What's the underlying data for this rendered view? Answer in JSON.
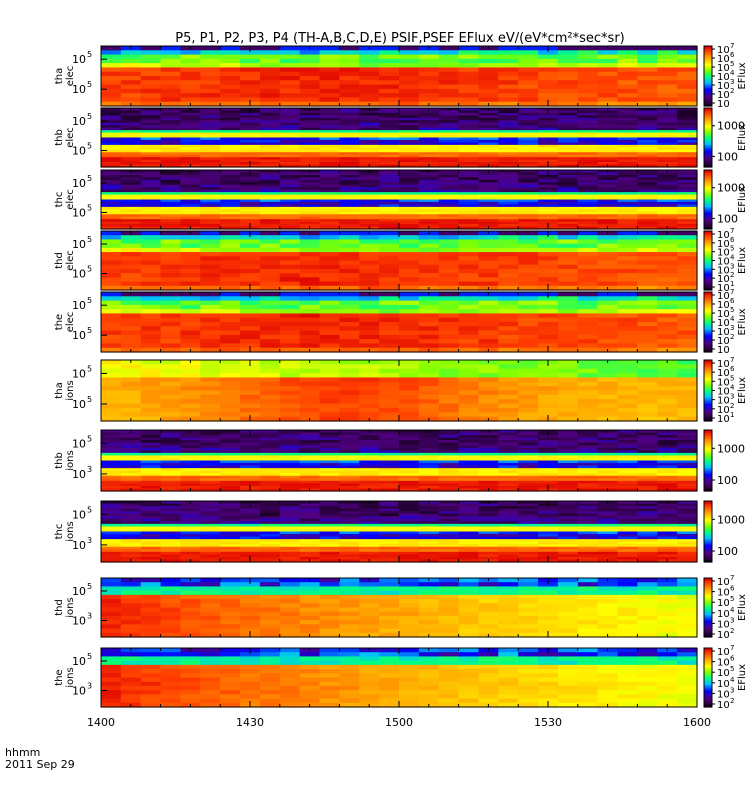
{
  "chart_data": {
    "type": "heatmap",
    "title": "P5, P1, P2, P3, P4 (TH-A,B,C,D,E) PSIF,PSEF EFlux eV/(eV*cm²*sec*sr)",
    "x_ticks": [
      "1400",
      "1430",
      "1500",
      "1530",
      "1600"
    ],
    "x_range": [
      1400,
      1600
    ],
    "time_label_1": "hhmm",
    "time_label_2": "2011 Sep 29",
    "panels": [
      {
        "probe": "tha",
        "species": "elec",
        "y_ticks": [
          "10",
          "10"
        ],
        "y_exps": [
          "5",
          "5"
        ],
        "colorbar_label": "EFlux",
        "colorbar_ticks": [
          "10",
          "10",
          "10",
          "10",
          "10",
          "10",
          "10"
        ],
        "colorbar_exps": [
          "7",
          "6",
          "5",
          "4",
          "3",
          "2",
          ""
        ],
        "pattern": "elec_high"
      },
      {
        "probe": "thb",
        "species": "elec",
        "y_ticks": [
          "10",
          "10"
        ],
        "y_exps": [
          "5",
          "5"
        ],
        "colorbar_label": "EFlux",
        "colorbar_ticks": [
          "1000",
          "100"
        ],
        "colorbar_exps": [
          "",
          ""
        ],
        "pattern": "bands"
      },
      {
        "probe": "thc",
        "species": "elec",
        "y_ticks": [
          "10",
          "10"
        ],
        "y_exps": [
          "5",
          "5"
        ],
        "colorbar_label": "EFlux",
        "colorbar_ticks": [
          "1000",
          "100"
        ],
        "colorbar_exps": [
          "",
          ""
        ],
        "pattern": "bands"
      },
      {
        "probe": "thd",
        "species": "elec",
        "y_ticks": [
          "10",
          "10"
        ],
        "y_exps": [
          "5",
          "5"
        ],
        "colorbar_label": "EFlux",
        "colorbar_ticks": [
          "10",
          "10",
          "10",
          "10",
          "10",
          "10",
          "10"
        ],
        "colorbar_exps": [
          "7",
          "6",
          "5",
          "4",
          "3",
          "2",
          "1"
        ],
        "pattern": "elec_high"
      },
      {
        "probe": "the",
        "species": "elec",
        "y_ticks": [
          "10",
          "10"
        ],
        "y_exps": [
          "5",
          "5"
        ],
        "colorbar_label": "EFlux",
        "colorbar_ticks": [
          "10",
          "10",
          "10",
          "10",
          "10",
          "10",
          "10"
        ],
        "colorbar_exps": [
          "7",
          "6",
          "5",
          "4",
          "3",
          "2",
          ""
        ],
        "pattern": "elec_high"
      },
      {
        "probe": "tha",
        "species": "ions",
        "y_ticks": [
          "10",
          "10"
        ],
        "y_exps": [
          "5",
          "5"
        ],
        "colorbar_label": "EFlux",
        "colorbar_ticks": [
          "10",
          "10",
          "10",
          "10",
          "10",
          "10",
          "10"
        ],
        "colorbar_exps": [
          "7",
          "6",
          "5",
          "4",
          "3",
          "2",
          "1"
        ],
        "pattern": "ions_a"
      },
      {
        "probe": "thb",
        "species": "ions",
        "y_ticks": [
          "10",
          "10"
        ],
        "y_exps": [
          "5",
          "3"
        ],
        "colorbar_label": "",
        "colorbar_ticks": [
          "1000",
          "100"
        ],
        "colorbar_exps": [
          "",
          ""
        ],
        "pattern": "bands_ion"
      },
      {
        "probe": "thc",
        "species": "ions",
        "y_ticks": [
          "10",
          "10"
        ],
        "y_exps": [
          "5",
          "3"
        ],
        "colorbar_label": "",
        "colorbar_ticks": [
          "1000",
          "100"
        ],
        "colorbar_exps": [
          "",
          ""
        ],
        "pattern": "bands_ion"
      },
      {
        "probe": "thd",
        "species": "ions",
        "y_ticks": [
          "10",
          "10"
        ],
        "y_exps": [
          "5",
          "3"
        ],
        "colorbar_label": "EFlux",
        "colorbar_ticks": [
          "10",
          "10",
          "10",
          "10",
          "10",
          "10"
        ],
        "colorbar_exps": [
          "7",
          "6",
          "5",
          "4",
          "3",
          "2"
        ],
        "pattern": "ions_dec"
      },
      {
        "probe": "the",
        "species": "ions",
        "y_ticks": [
          "10",
          "10"
        ],
        "y_exps": [
          "5",
          "3"
        ],
        "colorbar_label": "EFlux",
        "colorbar_ticks": [
          "10",
          "10",
          "10",
          "10",
          "10",
          "10"
        ],
        "colorbar_exps": [
          "7",
          "6",
          "5",
          "4",
          "3",
          "2"
        ],
        "pattern": "ions_dec"
      }
    ]
  }
}
